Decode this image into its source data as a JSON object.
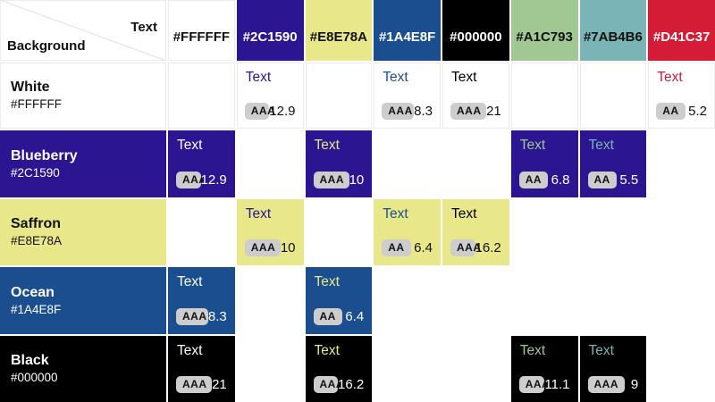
{
  "corner": {
    "text_label": "Text",
    "background_label": "Background"
  },
  "cell_sample_label": "Text",
  "columns": [
    {
      "hex": "#FFFFFF",
      "on_dark": false
    },
    {
      "hex": "#2C1590",
      "on_dark": true
    },
    {
      "hex": "#E8E78A",
      "on_dark": false
    },
    {
      "hex": "#1A4E8F",
      "on_dark": true
    },
    {
      "hex": "#000000",
      "on_dark": true
    },
    {
      "hex": "#A1C793",
      "on_dark": false
    },
    {
      "hex": "#7AB4B6",
      "on_dark": false
    },
    {
      "hex": "#D41C37",
      "on_dark": true
    }
  ],
  "rows": [
    {
      "name": "White",
      "hex": "#FFFFFF",
      "dark_bg": false,
      "cells": [
        null,
        {
          "level": "AAA",
          "ratio": "12.9"
        },
        null,
        {
          "level": "AAA",
          "ratio": "8.3"
        },
        {
          "level": "AAA",
          "ratio": "21"
        },
        null,
        null,
        {
          "level": "AA",
          "ratio": "5.2"
        }
      ]
    },
    {
      "name": "Blueberry",
      "hex": "#2C1590",
      "dark_bg": true,
      "cells": [
        {
          "level": "AAA",
          "ratio": "12.9"
        },
        null,
        {
          "level": "AAA",
          "ratio": "10"
        },
        null,
        null,
        {
          "level": "AA",
          "ratio": "6.8"
        },
        {
          "level": "AA",
          "ratio": "5.5"
        },
        null
      ]
    },
    {
      "name": "Saffron",
      "hex": "#E8E78A",
      "dark_bg": false,
      "cells": [
        null,
        {
          "level": "AAA",
          "ratio": "10"
        },
        null,
        {
          "level": "AA",
          "ratio": "6.4"
        },
        {
          "level": "AAA",
          "ratio": "16.2"
        },
        null,
        null,
        null
      ]
    },
    {
      "name": "Ocean",
      "hex": "#1A4E8F",
      "dark_bg": true,
      "cells": [
        {
          "level": "AAA",
          "ratio": "8.3"
        },
        null,
        {
          "level": "AA",
          "ratio": "6.4"
        },
        null,
        null,
        null,
        null,
        null
      ]
    },
    {
      "name": "Black",
      "hex": "#000000",
      "dark_bg": true,
      "cells": [
        {
          "level": "AAA",
          "ratio": "21"
        },
        null,
        {
          "level": "AAA",
          "ratio": "16.2"
        },
        null,
        null,
        {
          "level": "AAA",
          "ratio": "11.1"
        },
        {
          "level": "AAA",
          "ratio": "9"
        },
        null
      ]
    }
  ],
  "colors": {
    "badge_bg": "#cdcdcd",
    "badge_text": "#111111",
    "dark_text": "#111111",
    "light_text": "#FFFFFF",
    "white_cell_border": "#ececec",
    "diagonal_line": "#e5e5e5"
  }
}
